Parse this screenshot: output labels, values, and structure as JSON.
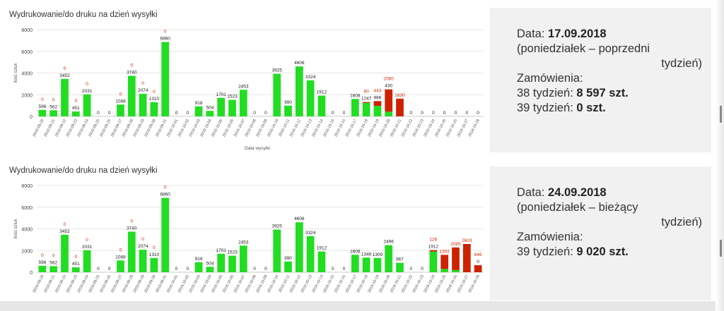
{
  "chart_data": [
    {
      "type": "bar",
      "title": "Wydrukowanie/do druku na dzień wysyłki",
      "xlabel": "Data wysyłki",
      "ylabel": "Ilość sztuk",
      "ylim": [
        0,
        8000
      ],
      "yticks": [
        0,
        2000,
        4000,
        6000,
        8000
      ],
      "grid": true,
      "stacked": true,
      "categories": [
        "2018-09-20",
        "2018-09-21",
        "2018-09-22",
        "2018-09-23",
        "2018-09-24",
        "2018-09-25",
        "2018-09-26",
        "2018-09-27",
        "2018-09-28",
        "2018-09-29",
        "2018-09-30",
        "2018-09-31",
        "2018-10-01",
        "2018-10-02",
        "2018-10-03",
        "2018-10-04",
        "2018-10-05",
        "2018-10-06",
        "2018-10-07",
        "2018-10-08",
        "2018-10-09",
        "2018-10-10",
        "2018-10-11",
        "2018-10-12",
        "2018-10-13",
        "2018-10-14",
        "2018-10-15",
        "2018-10-16",
        "2018-10-17",
        "2018-10-18",
        "2018-10-19",
        "2018-10-20",
        "2018-10-21",
        "2018-10-22",
        "2018-10-23",
        "2018-10-24",
        "2018-10-25",
        "2018-10-26",
        "2018-10-27",
        "2018-10-28"
      ],
      "series": [
        {
          "color": "#22dd22",
          "values": [
            596,
            562,
            3452,
            451,
            2031,
            0,
            0,
            1088,
            3740,
            2074,
            1310,
            6860,
            0,
            0,
            918,
            504,
            1701,
            1523,
            2453,
            0,
            0,
            3925,
            990,
            4606,
            3324,
            1912,
            0,
            0,
            1608,
            1247,
            966,
            430,
            0,
            0,
            0,
            0,
            0,
            0,
            0,
            0
          ]
        },
        {
          "color": "#cc2200",
          "values": [
            0,
            0,
            0,
            0,
            0,
            0,
            0,
            0,
            0,
            0,
            0,
            0,
            0,
            0,
            0,
            0,
            0,
            0,
            0,
            0,
            0,
            0,
            0,
            0,
            0,
            0,
            0,
            0,
            0,
            80,
            443,
            2060,
            1630,
            0,
            0,
            0,
            0,
            0,
            0,
            0
          ]
        }
      ],
      "labels_green": [
        "596",
        "562",
        "3452",
        "451",
        "2031",
        "0",
        "0",
        "1088",
        "3740",
        "2074",
        "1310",
        "6860",
        "0",
        "0",
        "918",
        "504",
        "1701",
        "1523",
        "2453",
        "0",
        "0",
        "3925",
        "990",
        "4606",
        "3324",
        "1912",
        "0",
        "0",
        "1608",
        "1247",
        "966",
        "430",
        "",
        "0",
        "0",
        "0",
        "0",
        "0",
        "0",
        "0"
      ],
      "labels_red": [
        "0",
        "0",
        "0",
        "0",
        "0",
        "",
        "",
        "0",
        "0",
        "0",
        "0",
        "0",
        "",
        "",
        "",
        "",
        "",
        "",
        "",
        "",
        "",
        "",
        "",
        "",
        "",
        "",
        "",
        "",
        "",
        "80",
        "443",
        "2060",
        "1630",
        "",
        "",
        "",
        "",
        "",
        "",
        ""
      ]
    },
    {
      "type": "bar",
      "title": "Wydrukowanie/do druku na dzień wysyłki",
      "xlabel": "Data wysyłki",
      "ylabel": "Ilość sztuk",
      "ylim": [
        0,
        8000
      ],
      "yticks": [
        0,
        2000,
        4000,
        6000,
        8000
      ],
      "grid": true,
      "stacked": true,
      "categories": [
        "2018-09-20",
        "2018-09-21",
        "2018-09-22",
        "2018-09-23",
        "2018-09-24",
        "2018-09-25",
        "2018-09-26",
        "2018-09-27",
        "2018-09-28",
        "2018-09-29",
        "2018-09-30",
        "2018-09-31",
        "2018-10-01",
        "2018-10-02",
        "2018-10-03",
        "2018-10-04",
        "2018-10-05",
        "2018-10-06",
        "2018-10-07",
        "2018-10-08",
        "2018-10-09",
        "2018-10-10",
        "2018-10-11",
        "2018-10-12",
        "2018-10-13",
        "2018-10-14",
        "2018-10-15",
        "2018-10-16",
        "2018-10-17",
        "2018-10-18",
        "2018-10-19",
        "2018-10-20",
        "2018-10-21",
        "2018-10-22",
        "2018-10-23",
        "2018-10-24",
        "2018-10-25",
        "2018-10-26",
        "2018-10-27",
        "2018-10-28"
      ],
      "series": [
        {
          "color": "#22dd22",
          "values": [
            596,
            562,
            3452,
            451,
            2031,
            0,
            0,
            1088,
            3740,
            2074,
            1310,
            6860,
            0,
            0,
            918,
            504,
            1701,
            1523,
            2453,
            0,
            0,
            3925,
            990,
            4606,
            3324,
            1912,
            0,
            0,
            1608,
            1346,
            1309,
            2496,
            867,
            0,
            0,
            1912,
            300,
            200,
            0,
            0
          ]
        },
        {
          "color": "#cc2200",
          "values": [
            0,
            0,
            0,
            0,
            0,
            0,
            0,
            0,
            0,
            0,
            0,
            0,
            0,
            0,
            0,
            0,
            0,
            0,
            0,
            0,
            0,
            0,
            0,
            0,
            0,
            0,
            0,
            0,
            0,
            0,
            0,
            0,
            0,
            0,
            0,
            126,
            1302,
            2085,
            2603,
            646
          ]
        }
      ],
      "labels_green": [
        "596",
        "562",
        "3452",
        "451",
        "2031",
        "0",
        "0",
        "1088",
        "3740",
        "2074",
        "1310",
        "6860",
        "0",
        "0",
        "918",
        "504",
        "1701",
        "1523",
        "2453",
        "0",
        "0",
        "3925",
        "990",
        "4606",
        "3324",
        "1912",
        "0",
        "0",
        "1608",
        "1346",
        "1309",
        "2496",
        "867",
        "0",
        "0",
        "1912",
        "",
        "",
        "",
        "0"
      ],
      "labels_red": [
        "0",
        "0",
        "0",
        "0",
        "0",
        "",
        "",
        "0",
        "0",
        "0",
        "0",
        "0",
        "",
        "",
        "",
        "",
        "",
        "",
        "",
        "",
        "",
        "",
        "",
        "",
        "",
        "",
        "",
        "",
        "",
        "",
        "",
        "",
        "",
        "",
        "",
        "126",
        "1302",
        "2085",
        "2603",
        "646"
      ]
    }
  ],
  "info": [
    {
      "date_label": "Data: ",
      "date_value": "17.09.2018",
      "weekday_line1": "(poniedziałek – poprzedni",
      "weekday_line2": "tydzień)",
      "orders_label": "Zamówienia:",
      "week_a_label": "38 tydzień: ",
      "week_a_value": "8 597 szt.",
      "week_b_label": "39 tydzień: ",
      "week_b_value": "0 szt."
    },
    {
      "date_label": "Data: ",
      "date_value": "24.09.2018",
      "weekday_line1": "(poniedziałek – bieżący",
      "weekday_line2": "tydzień)",
      "orders_label": "Zamówienia:",
      "week_a_label": "39 tydzień: ",
      "week_a_value": "9 020 szt."
    }
  ]
}
